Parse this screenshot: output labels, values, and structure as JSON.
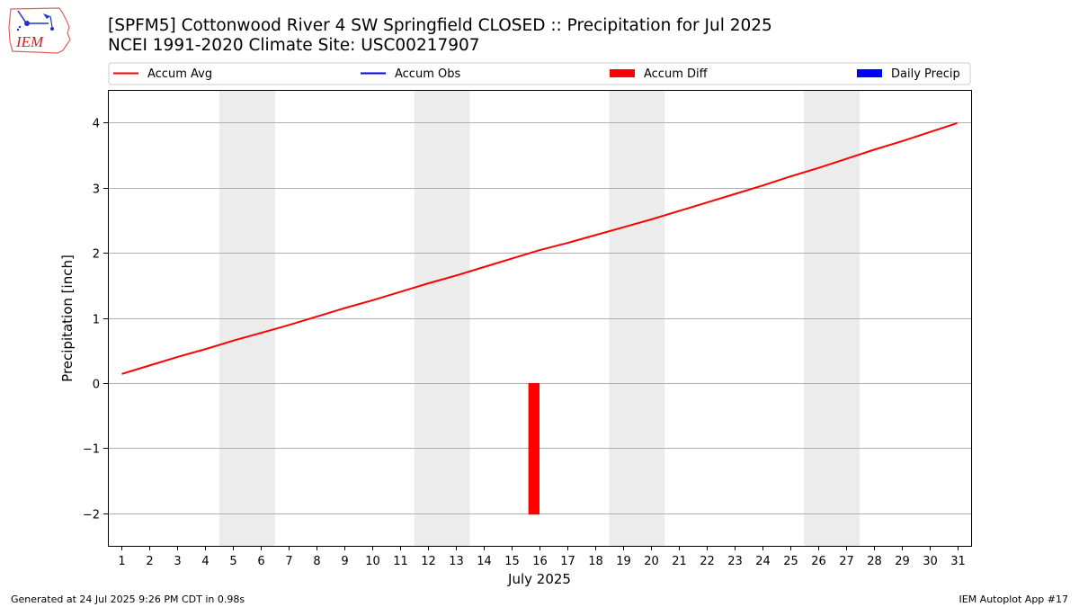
{
  "header": {
    "title_line1": "[SPFM5] Cottonwood River 4 SW Springfield CLOSED :: Precipitation for Jul 2025",
    "title_line2": "NCEI 1991-2020 Climate Site: USC00217907",
    "logo_text": "IEM"
  },
  "footer": {
    "generated": "Generated at 24 Jul 2025 9:26 PM CDT in 0.98s",
    "app": "IEM Autoplot App #17"
  },
  "chart_data": {
    "type": "line",
    "xlabel": "July 2025",
    "ylabel": "Precipitation [inch]",
    "x_ticks": [
      "1",
      "2",
      "3",
      "4",
      "5",
      "6",
      "7",
      "8",
      "9",
      "10",
      "11",
      "12",
      "13",
      "14",
      "15",
      "16",
      "17",
      "18",
      "19",
      "20",
      "21",
      "22",
      "23",
      "24",
      "25",
      "26",
      "27",
      "28",
      "29",
      "30",
      "31"
    ],
    "xlim": [
      0.5,
      31.5
    ],
    "ylim": [
      -2.5,
      4.5
    ],
    "y_ticks": [
      -2,
      -1,
      0,
      1,
      2,
      3,
      4
    ],
    "grid": "horizontal",
    "legend_position": "top",
    "weekend_shading": [
      [
        4.5,
        6.5
      ],
      [
        11.5,
        13.5
      ],
      [
        18.5,
        20.5
      ],
      [
        25.5,
        27.5
      ]
    ],
    "colors": {
      "accum_avg": "#ff0000",
      "accum_obs": "#0000ff",
      "accum_diff": "#ff0000",
      "daily_precip": "#0000ff",
      "weekend": "#ececec",
      "grid": "#b0b0b0"
    },
    "legend": [
      {
        "label": "Accum Avg",
        "kind": "line",
        "color": "#ff0000"
      },
      {
        "label": "Accum Obs",
        "kind": "line",
        "color": "#0000ff"
      },
      {
        "label": "Accum Diff",
        "kind": "bar",
        "color": "#ff0000"
      },
      {
        "label": "Daily Precip",
        "kind": "bar",
        "color": "#0000ff"
      }
    ],
    "series": [
      {
        "name": "Accum Avg",
        "x": [
          1,
          2,
          3,
          4,
          5,
          6,
          7,
          8,
          9,
          10,
          11,
          12,
          13,
          14,
          15,
          16,
          17,
          18,
          19,
          20,
          21,
          22,
          23,
          24,
          25,
          26,
          27,
          28,
          29,
          30,
          31
        ],
        "values": [
          0.14,
          0.27,
          0.4,
          0.52,
          0.65,
          0.77,
          0.89,
          1.02,
          1.15,
          1.27,
          1.4,
          1.53,
          1.65,
          1.78,
          1.91,
          2.04,
          2.15,
          2.27,
          2.39,
          2.51,
          2.64,
          2.77,
          2.9,
          3.03,
          3.17,
          3.3,
          3.44,
          3.58,
          3.71,
          3.85,
          3.99
        ]
      },
      {
        "name": "Accum Diff",
        "x": [
          15.8
        ],
        "values": [
          -2.02
        ]
      }
    ]
  }
}
